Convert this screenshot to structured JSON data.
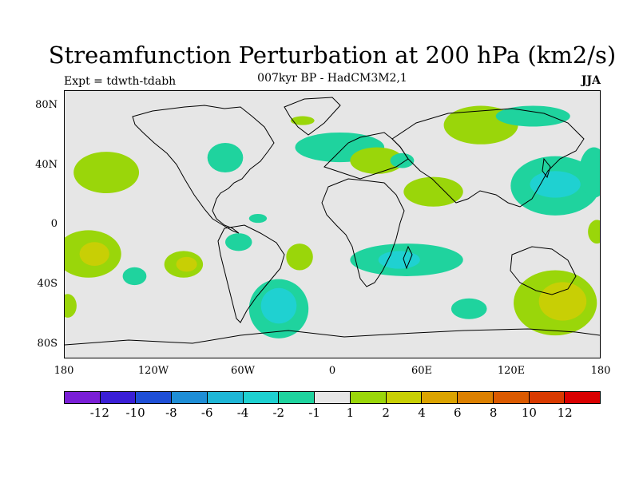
{
  "header": {
    "title": "Streamfunction Perturbation at 200 hPa (km2/s)",
    "subtitle": "007kyr BP - HadCM3M2,1",
    "expt": "Expt = tdwth-tdabh",
    "season": "JJA"
  },
  "axes": {
    "y_labels": [
      "80N",
      "40N",
      "0",
      "40S",
      "80S"
    ],
    "x_labels": [
      "180",
      "120W",
      "60W",
      "0",
      "60E",
      "120E",
      "180"
    ]
  },
  "legend": {
    "colors": [
      "#7a1fd6",
      "#3a1fd6",
      "#1f4fd6",
      "#1f8ed6",
      "#1fb6d6",
      "#1fd1d1",
      "#1fd39e",
      "#e6e6e6",
      "#9ad60a",
      "#c8cf05",
      "#dba300",
      "#dc8000",
      "#db5a00",
      "#d93a00",
      "#d90000"
    ],
    "labels": [
      "-12",
      "-10",
      "-8",
      "-6",
      "-4",
      "-2",
      "-1",
      "1",
      "2",
      "4",
      "6",
      "8",
      "10",
      "12"
    ]
  },
  "regions": [
    {
      "name": "north-pacific-positive",
      "lon": -152,
      "lat": 35,
      "rlon": 22,
      "rlat": 14,
      "level": "2"
    },
    {
      "name": "north-atlantic-negative",
      "lon": -72,
      "lat": 45,
      "rlon": 12,
      "rlat": 10,
      "level": "-1"
    },
    {
      "name": "greenland-positive",
      "lon": -20,
      "lat": 70,
      "rlon": 8,
      "rlat": 3,
      "level": "2"
    },
    {
      "name": "north-europe-negative",
      "lon": 5,
      "lat": 52,
      "rlon": 30,
      "rlat": 10,
      "level": "-1"
    },
    {
      "name": "mediterranean-positive",
      "lon": 30,
      "lat": 43,
      "rlon": 18,
      "rlat": 9,
      "level": "2"
    },
    {
      "name": "ural-negative",
      "lon": 47,
      "lat": 43,
      "rlon": 8,
      "rlat": 5,
      "level": "-1"
    },
    {
      "name": "siberia-positive",
      "lon": 100,
      "lat": 67,
      "rlon": 25,
      "rlat": 13,
      "level": "2"
    },
    {
      "name": "arctic-negative",
      "lon": 135,
      "lat": 73,
      "rlon": 25,
      "rlat": 7,
      "level": "-1"
    },
    {
      "name": "south-asia-positive",
      "lon": 68,
      "lat": 22,
      "rlon": 20,
      "rlat": 10,
      "level": "2"
    },
    {
      "name": "west-pacific-negative",
      "lon": 150,
      "lat": 26,
      "rlon": 30,
      "rlat": 20,
      "level": "-1"
    },
    {
      "name": "west-pacific-core",
      "lon": 150,
      "lat": 27,
      "rlon": 17,
      "rlat": 9,
      "level": "-2"
    },
    {
      "name": "atlantic-small-negative",
      "lon": -50,
      "lat": 4,
      "rlon": 6,
      "rlat": 3,
      "level": "-1"
    },
    {
      "name": "brazil-negative",
      "lon": -63,
      "lat": -12,
      "rlon": 9,
      "rlat": 6,
      "level": "-1"
    },
    {
      "name": "central-pacific-positive",
      "lon": -164,
      "lat": -20,
      "rlon": 22,
      "rlat": 16,
      "level": "2"
    },
    {
      "name": "central-pacific-core",
      "lon": -160,
      "lat": -20,
      "rlon": 10,
      "rlat": 8,
      "level": "4"
    },
    {
      "name": "east-pacific-positive",
      "lon": -100,
      "lat": -27,
      "rlon": 13,
      "rlat": 9,
      "level": "2"
    },
    {
      "name": "east-pacific-core",
      "lon": -98,
      "lat": -27,
      "rlon": 7,
      "rlat": 5,
      "level": "4"
    },
    {
      "name": "south-pacific-negative",
      "lon": -133,
      "lat": -35,
      "rlon": 8,
      "rlat": 6,
      "level": "-1"
    },
    {
      "name": "south-atlantic-positive",
      "lon": -22,
      "lat": -22,
      "rlon": 9,
      "rlat": 9,
      "level": "2"
    },
    {
      "name": "southern-ocean-negative",
      "lon": -36,
      "lat": -57,
      "rlon": 20,
      "rlat": 20,
      "level": "-1"
    },
    {
      "name": "southern-ocean-core",
      "lon": -36,
      "lat": -55,
      "rlon": 12,
      "rlat": 12,
      "level": "-2"
    },
    {
      "name": "indian-ocean-negative",
      "lon": 50,
      "lat": -24,
      "rlon": 38,
      "rlat": 11,
      "level": "-1"
    },
    {
      "name": "indian-ocean-core",
      "lon": 45,
      "lat": -24,
      "rlon": 14,
      "rlat": 6,
      "level": "-2"
    },
    {
      "name": "south-indian-negative",
      "lon": 92,
      "lat": -57,
      "rlon": 12,
      "rlat": 7,
      "level": "-1"
    },
    {
      "name": "australia-south-positive",
      "lon": 150,
      "lat": -53,
      "rlon": 28,
      "rlat": 22,
      "level": "2"
    },
    {
      "name": "australia-south-core",
      "lon": 155,
      "lat": -52,
      "rlon": 16,
      "rlat": 13,
      "level": "4"
    },
    {
      "name": "east-atlantic-positive",
      "lon": -178,
      "lat": -55,
      "rlon": 6,
      "rlat": 8,
      "level": "2"
    },
    {
      "name": "far-east-negative",
      "lon": 176,
      "lat": 35,
      "rlon": 10,
      "rlat": 17,
      "level": "-1"
    },
    {
      "name": "far-east-positive",
      "lon": 178,
      "lat": -5,
      "rlon": 6,
      "rlat": 8,
      "level": "2"
    }
  ]
}
